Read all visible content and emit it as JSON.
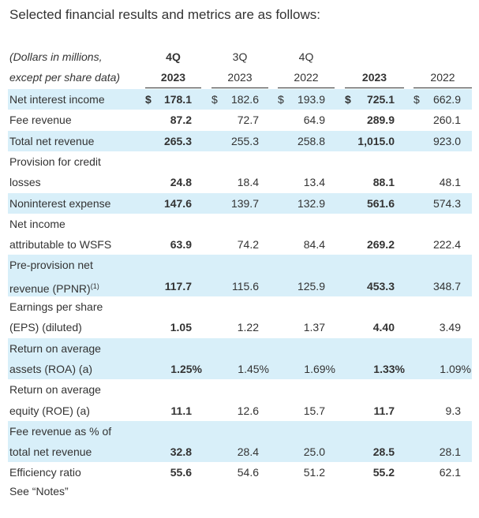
{
  "title": "Selected financial results and metrics are as follows:",
  "table": {
    "stub_header": [
      "(Dollars in millions,",
      "except per share data)"
    ],
    "columns": [
      [
        "4Q",
        "2023"
      ],
      [
        "3Q",
        "2023"
      ],
      [
        "4Q",
        "2022"
      ],
      [
        "",
        "2023"
      ],
      [
        "",
        "2022"
      ]
    ],
    "rows": [
      {
        "label": [
          "Net interest income"
        ],
        "currency": "$",
        "values": [
          "178.1",
          "182.6",
          "193.9",
          "725.1",
          "662.9"
        ]
      },
      {
        "label": [
          "Fee revenue"
        ],
        "values": [
          "87.2",
          "72.7",
          "64.9",
          "289.9",
          "260.1"
        ]
      },
      {
        "label": [
          "Total net revenue"
        ],
        "values": [
          "265.3",
          "255.3",
          "258.8",
          "1,015.0",
          "923.0"
        ]
      },
      {
        "label": [
          "Provision for credit",
          "losses"
        ],
        "values": [
          "24.8",
          "18.4",
          "13.4",
          "88.1",
          "48.1"
        ]
      },
      {
        "label": [
          "Noninterest expense"
        ],
        "values": [
          "147.6",
          "139.7",
          "132.9",
          "561.6",
          "574.3"
        ]
      },
      {
        "label": [
          "Net income",
          "attributable to WSFS"
        ],
        "values": [
          "63.9",
          "74.2",
          "84.4",
          "269.2",
          "222.4"
        ]
      },
      {
        "label": [
          "Pre-provision net",
          "revenue (PPNR)"
        ],
        "superscript": "(1)",
        "values": [
          "117.7",
          "115.6",
          "125.9",
          "453.3",
          "348.7"
        ]
      },
      {
        "label": [
          "Earnings per share",
          "(EPS) (diluted)"
        ],
        "values": [
          "1.05",
          "1.22",
          "1.37",
          "4.40",
          "3.49"
        ]
      },
      {
        "label": [
          "Return on average",
          "assets (ROA) (a)"
        ],
        "values": [
          "1.25%",
          "1.45%",
          "1.69%",
          "1.33%",
          "1.09%"
        ]
      },
      {
        "label": [
          "Return on average",
          "equity (ROE) (a)"
        ],
        "values": [
          "11.1",
          "12.6",
          "15.7",
          "11.7",
          "9.3"
        ]
      },
      {
        "label": [
          "Fee revenue as % of",
          "total net revenue"
        ],
        "values": [
          "32.8",
          "28.4",
          "25.0",
          "28.5",
          "28.1"
        ]
      },
      {
        "label": [
          "Efficiency ratio"
        ],
        "values": [
          "55.6",
          "54.6",
          "51.2",
          "55.2",
          "62.1"
        ]
      }
    ]
  },
  "footnote": "See “Notes”"
}
